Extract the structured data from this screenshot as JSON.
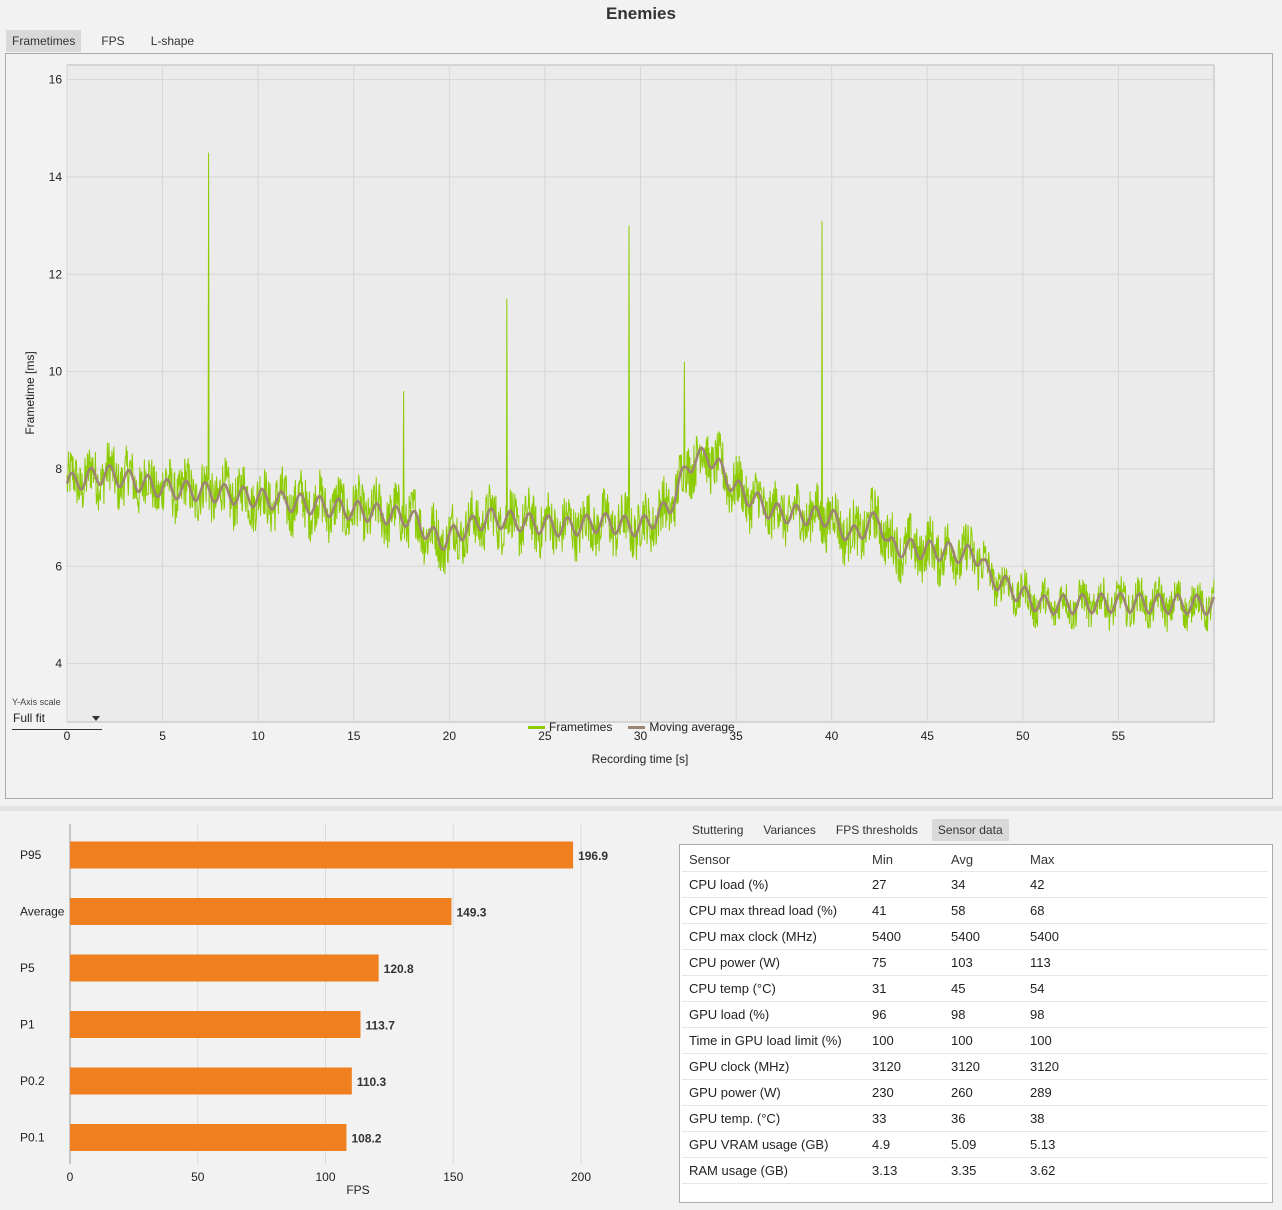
{
  "title": "Enemies",
  "top_tabs": [
    "Frametimes",
    "FPS",
    "L-shape"
  ],
  "frametime_chart": {
    "ylabel": "Frametime [ms]",
    "xlabel": "Recording time [s]",
    "y_ticks": [
      "4",
      "6",
      "8",
      "10",
      "12",
      "14",
      "16"
    ],
    "x_ticks": [
      "0",
      "5",
      "10",
      "15",
      "20",
      "25",
      "30",
      "35",
      "40",
      "45",
      "50",
      "55"
    ],
    "colors": {
      "frametimes": "#8ccc00",
      "moving_average": "#9c8572"
    }
  },
  "y_axis_scale": {
    "label": "Y-Axis scale",
    "value": "Full fit"
  },
  "legend": {
    "frametimes": "Frametimes",
    "moving_average": "Moving average"
  },
  "chart_data": {
    "type": "bar",
    "categories": [
      "P95",
      "Average",
      "P5",
      "P1",
      "P0.2",
      "P0.1"
    ],
    "values": [
      196.9,
      149.3,
      120.8,
      113.7,
      110.3,
      108.2
    ],
    "value_labels": [
      "196.9",
      "149.3",
      "120.8",
      "113.7",
      "110.3",
      "108.2"
    ],
    "xlabel": "FPS",
    "x_ticks": [
      "0",
      "50",
      "100",
      "150",
      "200"
    ],
    "xlim": [
      0,
      230
    ],
    "bar_color": "#f07f1f"
  },
  "bottom_tabs": [
    "Stuttering",
    "Variances",
    "FPS thresholds",
    "Sensor data"
  ],
  "sensor_table": {
    "headers": [
      "Sensor",
      "Min",
      "Avg",
      "Max"
    ],
    "rows": [
      [
        "CPU load (%)",
        "27",
        "34",
        "42"
      ],
      [
        "CPU max thread load (%)",
        "41",
        "58",
        "68"
      ],
      [
        "CPU max clock (MHz)",
        "5400",
        "5400",
        "5400"
      ],
      [
        "CPU power (W)",
        "75",
        "103",
        "113"
      ],
      [
        "CPU temp (°C)",
        "31",
        "45",
        "54"
      ],
      [
        "GPU load (%)",
        "96",
        "98",
        "98"
      ],
      [
        "Time in GPU load limit (%)",
        "100",
        "100",
        "100"
      ],
      [
        "GPU clock (MHz)",
        "3120",
        "3120",
        "3120"
      ],
      [
        "GPU power (W)",
        "230",
        "260",
        "289"
      ],
      [
        "GPU temp. (°C)",
        "33",
        "36",
        "38"
      ],
      [
        "GPU VRAM usage (GB)",
        "4.9",
        "5.09",
        "5.13"
      ],
      [
        "RAM usage (GB)",
        "3.13",
        "3.35",
        "3.62"
      ]
    ]
  }
}
